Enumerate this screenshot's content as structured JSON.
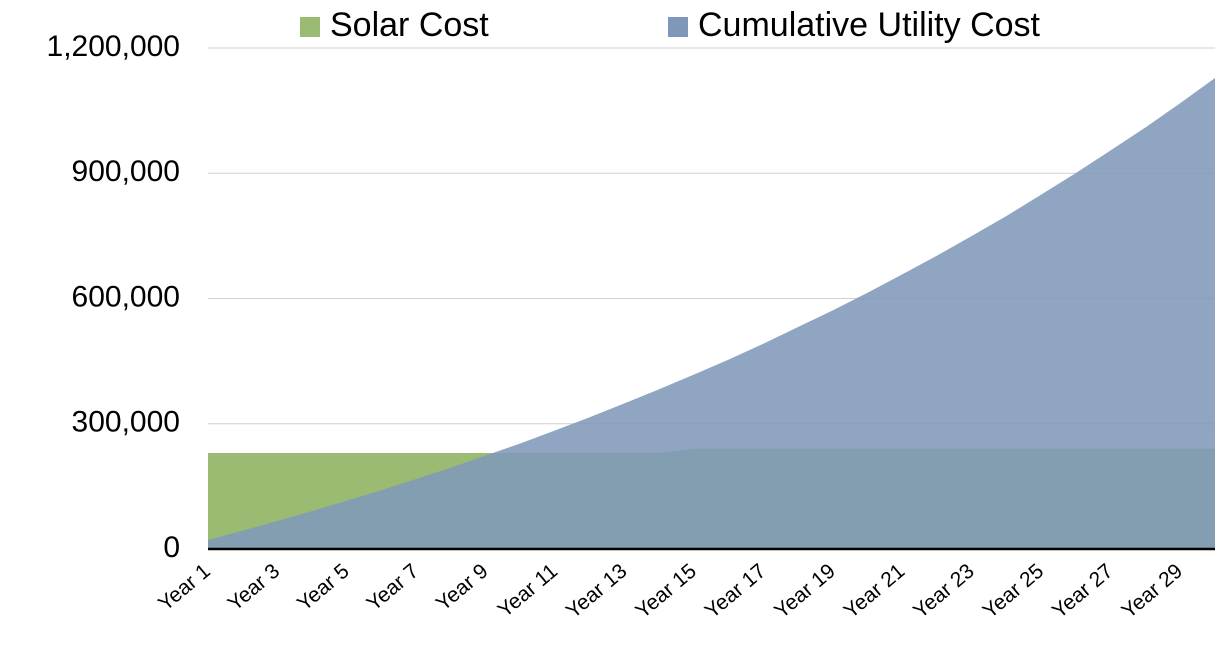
{
  "chart_data": {
    "type": "area",
    "categories": [
      "Year 1",
      null,
      "Year 3",
      null,
      "Year 5",
      null,
      "Year 7",
      null,
      "Year 9",
      null,
      "Year 11",
      null,
      "Year 13",
      null,
      "Year 15",
      null,
      "Year 17",
      null,
      "Year 19",
      null,
      "Year 21",
      null,
      "Year 23",
      null,
      "Year 25",
      null,
      "Year 27",
      null,
      "Year 29",
      null
    ],
    "series": [
      {
        "name": "Solar Cost",
        "color": "#9bbb73",
        "values": [
          230000,
          230000,
          230000,
          230000,
          230000,
          230000,
          230000,
          230000,
          230000,
          230000,
          230000,
          230000,
          230000,
          230000,
          240000,
          240000,
          240000,
          240000,
          240000,
          240000,
          240000,
          240000,
          240000,
          240000,
          240000,
          240000,
          240000,
          240000,
          240000,
          240000
        ]
      },
      {
        "name": "Cumulative Utility Cost",
        "color": "#7f98b9",
        "values": [
          21500,
          44000,
          67000,
          91000,
          116000,
          141000,
          168000,
          195000,
          224000,
          253000,
          284000,
          316000,
          349000,
          383000,
          418000,
          454000,
          492000,
          532000,
          572000,
          614000,
          658000,
          703000,
          750000,
          798000,
          849000,
          901000,
          955000,
          1010000,
          1068000,
          1128000
        ]
      }
    ],
    "ylim": [
      0,
      1200000
    ],
    "yticks": [
      0,
      {
        "value": 300000,
        "label": "300,000"
      },
      {
        "value": 600000,
        "label": "600,000"
      },
      {
        "value": 900000,
        "label": "900,000"
      },
      {
        "value": 1200000,
        "label": "1,200,000"
      }
    ],
    "grid": true,
    "legend": "top"
  }
}
